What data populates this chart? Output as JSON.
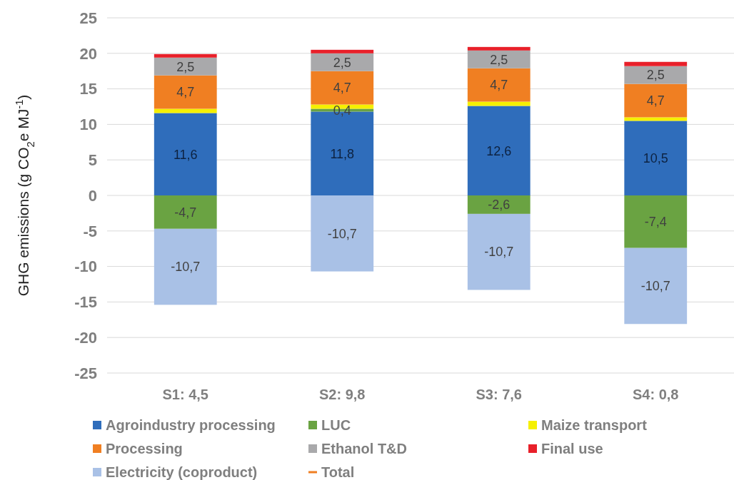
{
  "chart_data": {
    "type": "bar",
    "stacked": true,
    "ylabel": "GHG emissions (g CO$_{2}$e MJ$^{-1}$)",
    "categories": [
      "S1: 4,5",
      "S2: 9,8",
      "S3: 7,6",
      "S4: 0,8"
    ],
    "ylim": [
      -25,
      25
    ],
    "yticks": [
      -25,
      -20,
      -15,
      -10,
      -5,
      0,
      5,
      10,
      15,
      20,
      25
    ],
    "grid": "y",
    "legend": "bottom",
    "series": [
      {
        "name": "Agroindustry processing",
        "color": "#2f6dbb",
        "values": [
          11.6,
          11.8,
          12.6,
          10.5
        ],
        "value_labels": [
          "11,6",
          "11,8",
          "12,6",
          "10,5"
        ]
      },
      {
        "name": "LUC",
        "color": "#6aa342",
        "values": [
          -4.7,
          0.4,
          -2.6,
          -7.4
        ],
        "value_labels": [
          "-4,7",
          "0,4",
          "-2,6",
          "-7,4"
        ]
      },
      {
        "name": "Maize transport",
        "color": "#f5f000",
        "values": [
          0.6,
          0.6,
          0.6,
          0.5
        ]
      },
      {
        "name": "Processing",
        "color": "#f07f22",
        "values": [
          4.7,
          4.7,
          4.7,
          4.7
        ],
        "value_labels": [
          "4,7",
          "4,7",
          "4,7",
          "4,7"
        ]
      },
      {
        "name": "Ethanol T&D",
        "color": "#a9a9ab",
        "values": [
          2.5,
          2.5,
          2.5,
          2.5
        ],
        "value_labels": [
          "2,5",
          "2,5",
          "2,5",
          "2,5"
        ]
      },
      {
        "name": "Final use",
        "color": "#e8202a",
        "values": [
          0.5,
          0.5,
          0.5,
          0.6
        ]
      },
      {
        "name": "Electricity (coproduct)",
        "color": "#a9c1e6",
        "values": [
          -10.7,
          -10.7,
          -10.7,
          -10.7
        ],
        "value_labels": [
          "-10,7",
          "-10,7",
          "-10,7",
          "-10,7"
        ]
      },
      {
        "name": "Total",
        "type": "line",
        "color": "#f07f22",
        "values": [
          null,
          null,
          null,
          null
        ]
      }
    ]
  }
}
